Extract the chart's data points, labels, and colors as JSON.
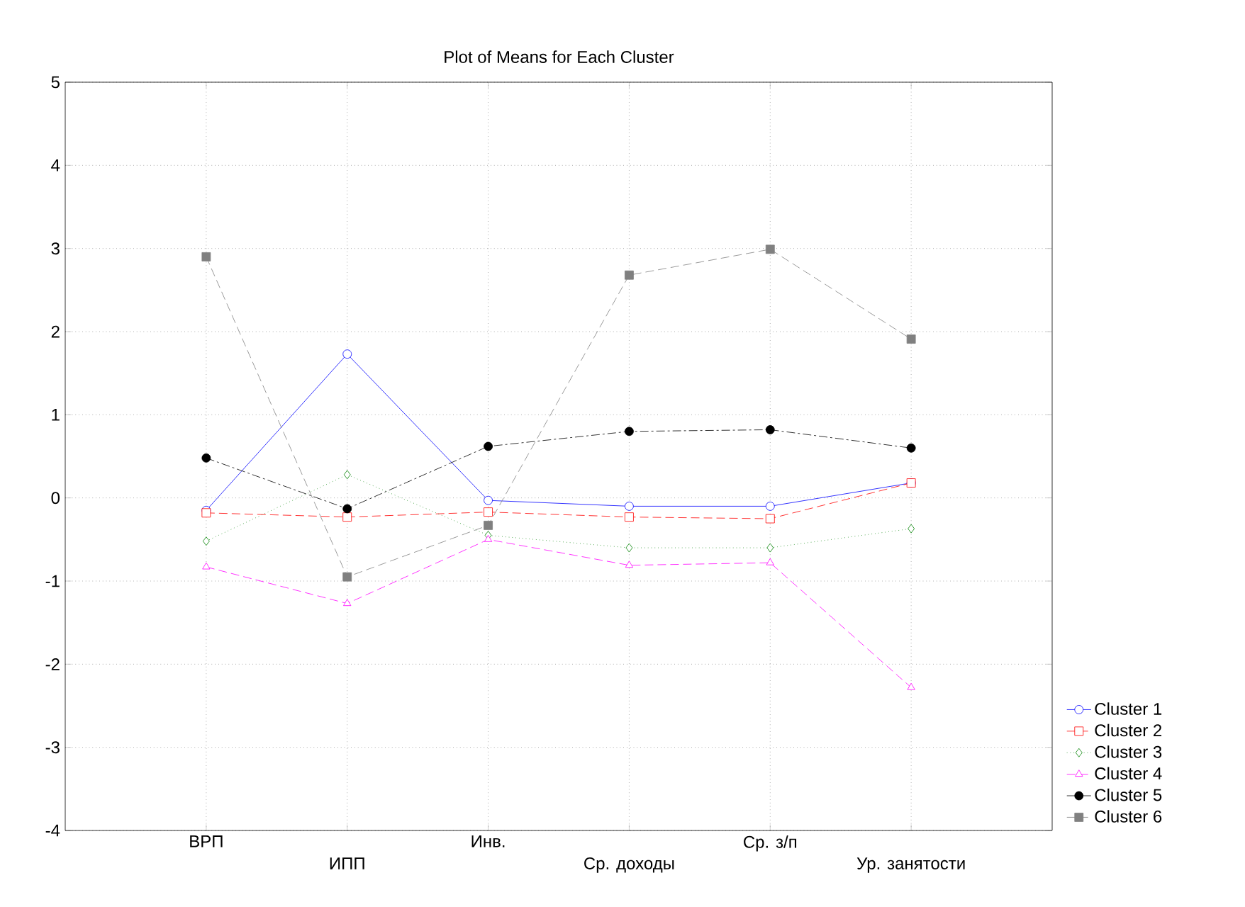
{
  "chart_data": {
    "type": "line",
    "title": "Plot of Means for Each Cluster",
    "categories": [
      "ВРП",
      "ИПП",
      "Инв.",
      "Ср. доходы",
      "Ср. з/п",
      "Ур. занятости"
    ],
    "ylim": [
      -4,
      5
    ],
    "yticks": [
      -4,
      -3,
      -2,
      -1,
      0,
      1,
      2,
      3,
      4,
      5
    ],
    "grid": true,
    "legend": "bottom right",
    "series": [
      {
        "name": "Cluster  1",
        "color": "#0000ff",
        "marker": "circle",
        "line_style": "solid",
        "values": [
          -0.15,
          1.73,
          -0.03,
          -0.1,
          -0.1,
          0.18
        ]
      },
      {
        "name": "Cluster  2",
        "color": "#ff0000",
        "marker": "square",
        "line_style": "dashed",
        "values": [
          -0.18,
          -0.23,
          -0.17,
          -0.23,
          -0.25,
          0.18
        ]
      },
      {
        "name": "Cluster  3",
        "color": "#008000",
        "marker": "diamond",
        "line_style": "dotted",
        "values": [
          -0.52,
          0.28,
          -0.45,
          -0.6,
          -0.6,
          -0.37
        ]
      },
      {
        "name": "Cluster  4",
        "color": "#ff00ff",
        "marker": "triangle",
        "line_style": "dashed",
        "values": [
          -0.83,
          -1.27,
          -0.5,
          -0.81,
          -0.78,
          -2.28
        ]
      },
      {
        "name": "Cluster  5",
        "color": "#000000",
        "marker": "circle",
        "line_style": "dashdot",
        "values": [
          0.48,
          -0.13,
          0.62,
          0.8,
          0.82,
          0.6
        ]
      },
      {
        "name": "Cluster  6",
        "color": "#808080",
        "marker": "square",
        "line_style": "dashed",
        "values": [
          2.9,
          -0.95,
          -0.33,
          2.68,
          2.99,
          1.91
        ]
      }
    ]
  }
}
